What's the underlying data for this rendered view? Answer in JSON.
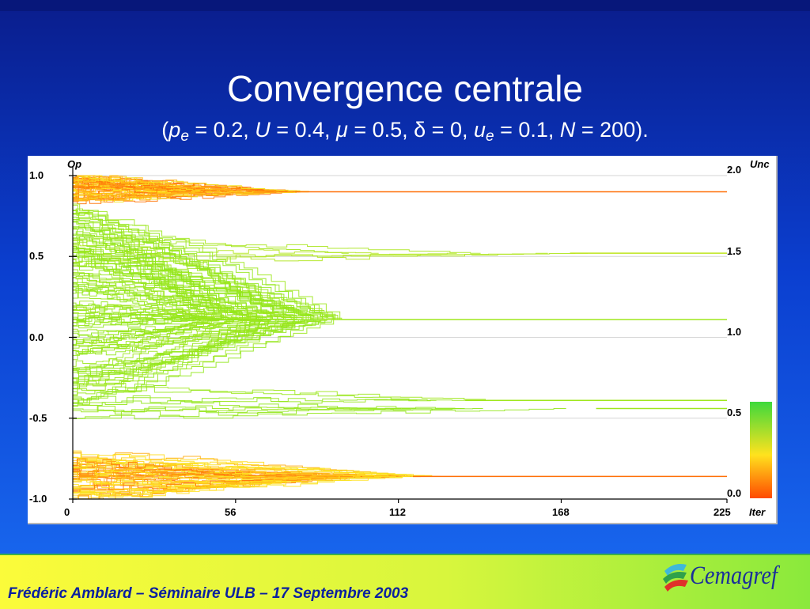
{
  "slide": {
    "title": "Convergence centrale",
    "subtitle": {
      "open": "(",
      "p_e_symbol": "p",
      "p_e_sub": "e",
      "p_e_value": " = 0.2, ",
      "U_symbol": "U",
      "U_value": " = 0.4, ",
      "mu_symbol": "μ",
      "mu_value": " = 0.5, ",
      "delta_symbol": "δ",
      "delta_value": " = 0, ",
      "u_e_symbol": "u",
      "u_e_sub": "e",
      "u_e_value": " = 0.1, ",
      "N_symbol": "N",
      "N_value": " = 200).",
      "close": ""
    },
    "footer": "Frédéric Amblard – Séminaire ULB – 17 Septembre 2003",
    "logo_text": "Cemagref"
  },
  "colors": {
    "background_top": "#0a1d8c",
    "background_bottom": "#1a6cf2",
    "high_uncertainty": "#7fe81c",
    "mid_uncertainty": "#ffe21e",
    "low_uncertainty": "#ff4a00"
  },
  "chart_data": {
    "type": "line",
    "xlabel": "Iter",
    "ylabel": "Op",
    "y2label": "Unc",
    "xlim": [
      0,
      225
    ],
    "ylim": [
      -1.0,
      1.0
    ],
    "x_ticks": [
      "0",
      "56",
      "112",
      "168",
      "225"
    ],
    "y_ticks": [
      "1.0",
      "0.5",
      "0.0",
      "-0.5",
      "-1.0"
    ],
    "y2_ticks": [
      "2.0",
      "1.5",
      "1.0",
      "0.5",
      "0.0"
    ],
    "colorbar": {
      "min": 0.0,
      "max": 0.4
    },
    "grid": true,
    "series": [
      {
        "final_opinion": 0.9,
        "converge_iter": 85,
        "initial_min": 0.84,
        "initial_max": 1.0,
        "line_count": 60,
        "uncertainty": 0.05
      },
      {
        "final_opinion": 0.52,
        "converge_iter": 190,
        "initial_min": 0.45,
        "initial_max": 0.62,
        "line_count": 6,
        "uncertainty": 0.3
      },
      {
        "final_opinion": 0.11,
        "converge_iter": 95,
        "initial_min": -0.4,
        "initial_max": 0.8,
        "line_count": 120,
        "uncertainty": 0.35
      },
      {
        "final_opinion": -0.39,
        "converge_iter": 150,
        "initial_min": -0.45,
        "initial_max": -0.25,
        "line_count": 4,
        "uncertainty": 0.35
      },
      {
        "final_opinion": -0.44,
        "converge_iter": 200,
        "initial_min": -0.5,
        "initial_max": -0.35,
        "line_count": 6,
        "uncertainty": 0.35
      },
      {
        "final_opinion": -0.86,
        "converge_iter": 130,
        "initial_min": -1.0,
        "initial_max": -0.72,
        "line_count": 60,
        "uncertainty": 0.05
      }
    ]
  }
}
